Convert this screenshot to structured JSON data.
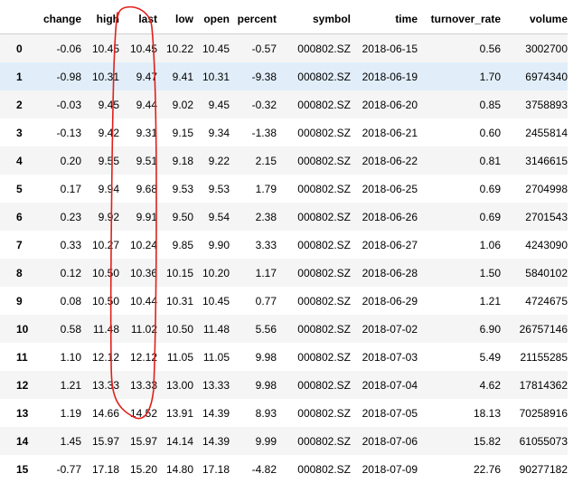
{
  "table": {
    "columns": [
      "change",
      "high",
      "last",
      "low",
      "open",
      "percent",
      "symbol",
      "time",
      "turnover_rate",
      "volume"
    ],
    "highlighted_row": 1,
    "rows": [
      {
        "index": "0",
        "cells": [
          "-0.06",
          "10.45",
          "10.45",
          "10.22",
          "10.45",
          "-0.57",
          "000802.SZ",
          "2018-06-15",
          "0.56",
          "3002700"
        ]
      },
      {
        "index": "1",
        "cells": [
          "-0.98",
          "10.31",
          "9.47",
          "9.41",
          "10.31",
          "-9.38",
          "000802.SZ",
          "2018-06-19",
          "1.70",
          "6974340"
        ]
      },
      {
        "index": "2",
        "cells": [
          "-0.03",
          "9.45",
          "9.44",
          "9.02",
          "9.45",
          "-0.32",
          "000802.SZ",
          "2018-06-20",
          "0.85",
          "3758893"
        ]
      },
      {
        "index": "3",
        "cells": [
          "-0.13",
          "9.42",
          "9.31",
          "9.15",
          "9.34",
          "-1.38",
          "000802.SZ",
          "2018-06-21",
          "0.60",
          "2455814"
        ]
      },
      {
        "index": "4",
        "cells": [
          "0.20",
          "9.55",
          "9.51",
          "9.18",
          "9.22",
          "2.15",
          "000802.SZ",
          "2018-06-22",
          "0.81",
          "3146615"
        ]
      },
      {
        "index": "5",
        "cells": [
          "0.17",
          "9.94",
          "9.68",
          "9.53",
          "9.53",
          "1.79",
          "000802.SZ",
          "2018-06-25",
          "0.69",
          "2704998"
        ]
      },
      {
        "index": "6",
        "cells": [
          "0.23",
          "9.92",
          "9.91",
          "9.50",
          "9.54",
          "2.38",
          "000802.SZ",
          "2018-06-26",
          "0.69",
          "2701543"
        ]
      },
      {
        "index": "7",
        "cells": [
          "0.33",
          "10.27",
          "10.24",
          "9.85",
          "9.90",
          "3.33",
          "000802.SZ",
          "2018-06-27",
          "1.06",
          "4243090"
        ]
      },
      {
        "index": "8",
        "cells": [
          "0.12",
          "10.50",
          "10.36",
          "10.15",
          "10.20",
          "1.17",
          "000802.SZ",
          "2018-06-28",
          "1.50",
          "5840102"
        ]
      },
      {
        "index": "9",
        "cells": [
          "0.08",
          "10.50",
          "10.44",
          "10.31",
          "10.45",
          "0.77",
          "000802.SZ",
          "2018-06-29",
          "1.21",
          "4724675"
        ]
      },
      {
        "index": "10",
        "cells": [
          "0.58",
          "11.48",
          "11.02",
          "10.50",
          "11.48",
          "5.56",
          "000802.SZ",
          "2018-07-02",
          "6.90",
          "26757146"
        ]
      },
      {
        "index": "11",
        "cells": [
          "1.10",
          "12.12",
          "12.12",
          "11.05",
          "11.05",
          "9.98",
          "000802.SZ",
          "2018-07-03",
          "5.49",
          "21155285"
        ]
      },
      {
        "index": "12",
        "cells": [
          "1.21",
          "13.33",
          "13.33",
          "13.00",
          "13.33",
          "9.98",
          "000802.SZ",
          "2018-07-04",
          "4.62",
          "17814362"
        ]
      },
      {
        "index": "13",
        "cells": [
          "1.19",
          "14.66",
          "14.52",
          "13.91",
          "14.39",
          "8.93",
          "000802.SZ",
          "2018-07-05",
          "18.13",
          "70258916"
        ]
      },
      {
        "index": "14",
        "cells": [
          "1.45",
          "15.97",
          "15.97",
          "14.14",
          "14.39",
          "9.99",
          "000802.SZ",
          "2018-07-06",
          "15.82",
          "61055073"
        ]
      },
      {
        "index": "15",
        "cells": [
          "-0.77",
          "17.18",
          "15.20",
          "14.80",
          "17.18",
          "-4.82",
          "000802.SZ",
          "2018-07-09",
          "22.76",
          "90277182"
        ]
      }
    ]
  },
  "annotation": {
    "shape": "hand-drawn-ellipse",
    "target_column": "last",
    "color": "#e0201a"
  }
}
